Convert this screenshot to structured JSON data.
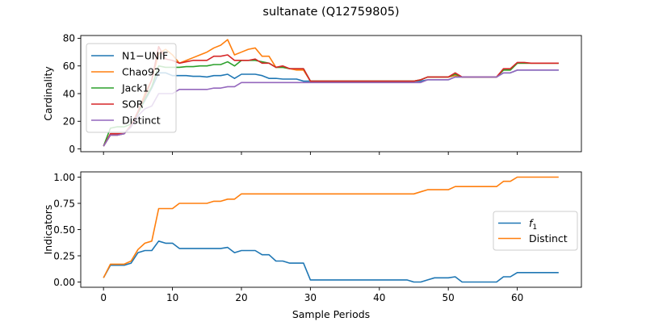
{
  "title": "sultanate (Q12759805)",
  "chart_data": [
    {
      "type": "line",
      "ylabel": "Cardinality",
      "xlim": [
        -3.3,
        69.3
      ],
      "ylim": [
        -2,
        82
      ],
      "xticks": [
        0,
        10,
        20,
        30,
        40,
        50,
        60
      ],
      "yticks": [
        0,
        20,
        40,
        60,
        80
      ],
      "show_xtick_labels": false,
      "legend": "upper-left",
      "x": [
        0,
        1,
        2,
        3,
        4,
        5,
        6,
        7,
        8,
        9,
        10,
        11,
        12,
        13,
        14,
        15,
        16,
        17,
        18,
        19,
        20,
        21,
        22,
        23,
        24,
        25,
        26,
        27,
        28,
        29,
        30,
        31,
        32,
        33,
        34,
        35,
        36,
        37,
        38,
        39,
        40,
        41,
        42,
        43,
        44,
        45,
        46,
        47,
        48,
        49,
        50,
        51,
        52,
        53,
        54,
        55,
        56,
        57,
        58,
        59,
        60,
        61,
        62,
        63,
        64,
        65,
        66
      ],
      "series": [
        {
          "name": "N1−UNIF",
          "color": "#1f77b4",
          "values": [
            2,
            10,
            10,
            11,
            17,
            26,
            35,
            44,
            55,
            55,
            53,
            53,
            53,
            52.5,
            52.5,
            52,
            53,
            53,
            54,
            51,
            54,
            54,
            54,
            53,
            51,
            51,
            50.5,
            50.5,
            50.5,
            49,
            49,
            49,
            49,
            49,
            49,
            49,
            49,
            49,
            49,
            49,
            49,
            49,
            49,
            49,
            49,
            49,
            49,
            50,
            50,
            50,
            50,
            52,
            52,
            52,
            52,
            52,
            52,
            52,
            55,
            55,
            57,
            57,
            57,
            57,
            57,
            57,
            57
          ]
        },
        {
          "name": "Chao92",
          "color": "#ff7f0e",
          "values": [
            2,
            10,
            10,
            11,
            17,
            27,
            40,
            50,
            69,
            72,
            68,
            62,
            64,
            66,
            68,
            70,
            73,
            75,
            79,
            68,
            70,
            72,
            73,
            67,
            67,
            59,
            59,
            58,
            57,
            57,
            49,
            49,
            49,
            49,
            49,
            49,
            49,
            49,
            49,
            49,
            49,
            49,
            49,
            49,
            49,
            49,
            50,
            52,
            52,
            52,
            52,
            53,
            52,
            52,
            52,
            52,
            52,
            52,
            57,
            57,
            62,
            62,
            62,
            62,
            62,
            62,
            62
          ]
        },
        {
          "name": "Jack1",
          "color": "#2ca02c",
          "values": [
            2,
            15,
            16,
            16,
            18,
            26,
            36,
            45,
            60,
            59,
            59,
            59,
            59.5,
            59.5,
            60,
            60,
            61,
            61,
            63,
            60,
            64,
            64,
            64,
            63,
            62,
            59,
            59,
            58,
            58,
            58,
            49,
            49,
            49,
            49,
            49,
            49,
            49,
            49,
            49,
            49,
            49,
            49,
            49,
            49,
            49,
            49,
            50,
            52,
            52,
            52,
            52,
            54,
            52,
            52,
            52,
            52,
            52,
            52,
            57,
            57,
            62,
            62,
            62,
            62,
            62,
            62,
            62
          ]
        },
        {
          "name": "SOR",
          "color": "#d62728",
          "values": [
            2,
            11,
            11,
            11,
            17,
            27,
            38,
            50,
            74,
            65,
            64,
            62,
            63,
            64,
            64,
            64,
            67,
            67,
            68,
            64,
            64,
            64,
            65,
            62,
            62,
            59,
            60,
            58,
            58,
            58,
            49,
            49,
            49,
            49,
            49,
            49,
            49,
            49,
            49,
            49,
            49,
            49,
            49,
            49,
            49,
            49,
            50,
            52,
            52,
            52,
            52,
            55,
            52,
            52,
            52,
            52,
            52,
            52,
            58,
            58,
            62.5,
            62.5,
            62,
            62,
            62,
            62,
            62
          ]
        },
        {
          "name": "Distinct",
          "color": "#9467bd",
          "values": [
            2,
            10,
            10,
            11,
            16,
            24,
            29,
            31,
            40,
            40,
            40,
            43,
            43,
            43,
            43,
            43,
            44,
            44,
            45,
            45,
            48,
            48,
            48,
            48,
            48,
            48,
            48,
            48,
            48,
            48,
            48,
            48,
            48,
            48,
            48,
            48,
            48,
            48,
            48,
            48,
            48,
            48,
            48,
            48,
            48,
            48,
            48,
            50,
            50,
            50,
            50,
            52,
            52,
            52,
            52,
            52,
            52,
            52,
            55,
            55,
            57,
            57,
            57,
            57,
            57,
            57,
            57
          ]
        }
      ]
    },
    {
      "type": "line",
      "xlabel": "Sample Periods",
      "ylabel": "Indicators",
      "xlim": [
        -3.3,
        69.3
      ],
      "ylim": [
        -0.05,
        1.05
      ],
      "xticks": [
        0,
        10,
        20,
        30,
        40,
        50,
        60
      ],
      "yticks": [
        0.0,
        0.25,
        0.5,
        0.75,
        1.0
      ],
      "ytick_labels": [
        "0.00",
        "0.25",
        "0.50",
        "0.75",
        "1.00"
      ],
      "legend": "center-right",
      "x": [
        0,
        1,
        2,
        3,
        4,
        5,
        6,
        7,
        8,
        9,
        10,
        11,
        12,
        13,
        14,
        15,
        16,
        17,
        18,
        19,
        20,
        21,
        22,
        23,
        24,
        25,
        26,
        27,
        28,
        29,
        30,
        31,
        32,
        33,
        34,
        35,
        36,
        37,
        38,
        39,
        40,
        41,
        42,
        43,
        44,
        45,
        46,
        47,
        48,
        49,
        50,
        51,
        52,
        53,
        54,
        55,
        56,
        57,
        58,
        59,
        60,
        61,
        62,
        63,
        64,
        65,
        66
      ],
      "series": [
        {
          "name": "f_1",
          "name_main": "f",
          "name_sub": "1",
          "color": "#1f77b4",
          "values": [
            0.04,
            0.16,
            0.16,
            0.16,
            0.18,
            0.28,
            0.3,
            0.3,
            0.39,
            0.37,
            0.37,
            0.32,
            0.32,
            0.32,
            0.32,
            0.32,
            0.32,
            0.32,
            0.33,
            0.28,
            0.3,
            0.3,
            0.3,
            0.26,
            0.26,
            0.2,
            0.2,
            0.18,
            0.18,
            0.18,
            0.02,
            0.02,
            0.02,
            0.02,
            0.02,
            0.02,
            0.02,
            0.02,
            0.02,
            0.02,
            0.02,
            0.02,
            0.02,
            0.02,
            0.02,
            0.0,
            0.0,
            0.02,
            0.04,
            0.04,
            0.04,
            0.05,
            0.0,
            0.0,
            0.0,
            0.0,
            0.0,
            0.0,
            0.05,
            0.05,
            0.09,
            0.09,
            0.09,
            0.09,
            0.09,
            0.09,
            0.09
          ]
        },
        {
          "name": "Distinct",
          "color": "#ff7f0e",
          "values": [
            0.04,
            0.17,
            0.17,
            0.17,
            0.2,
            0.31,
            0.37,
            0.39,
            0.7,
            0.7,
            0.7,
            0.75,
            0.75,
            0.75,
            0.75,
            0.75,
            0.77,
            0.77,
            0.79,
            0.79,
            0.84,
            0.84,
            0.84,
            0.84,
            0.84,
            0.84,
            0.84,
            0.84,
            0.84,
            0.84,
            0.84,
            0.84,
            0.84,
            0.84,
            0.84,
            0.84,
            0.84,
            0.84,
            0.84,
            0.84,
            0.84,
            0.84,
            0.84,
            0.84,
            0.84,
            0.84,
            0.86,
            0.88,
            0.88,
            0.88,
            0.88,
            0.91,
            0.91,
            0.91,
            0.91,
            0.91,
            0.91,
            0.91,
            0.96,
            0.96,
            1.0,
            1.0,
            1.0,
            1.0,
            1.0,
            1.0,
            1.0
          ]
        }
      ]
    }
  ]
}
